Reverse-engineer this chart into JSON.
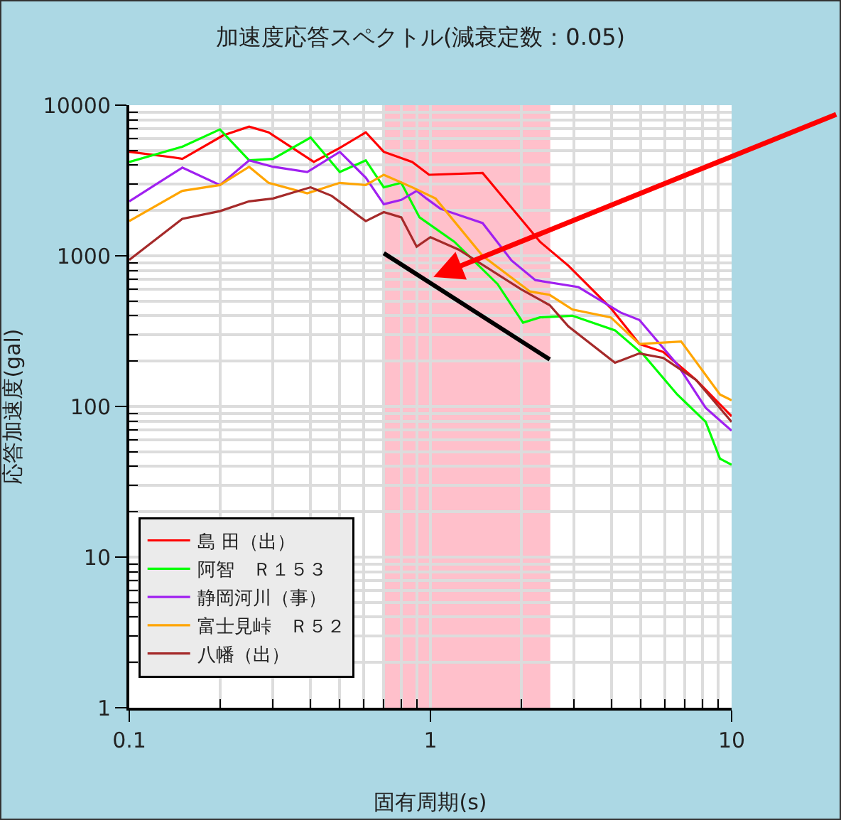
{
  "chart_data": {
    "type": "line",
    "title": "加速度応答スペクトル(減衰定数：0.05)",
    "xlabel": "固有周期(s)",
    "ylabel": "応答加速度(gal)",
    "log": "xy",
    "xlim": [
      0.1,
      10
    ],
    "ylim": [
      1,
      10000
    ],
    "xticks": [
      0.1,
      1,
      10
    ],
    "yticks": [
      1,
      10,
      100,
      1000,
      10000
    ],
    "grid": true,
    "legend": "bottom left",
    "marker": "none",
    "line_style": "solid",
    "bands": [
      {
        "axis": "x",
        "from": 0.7,
        "to": 2.5,
        "color": "#ffc0cb"
      }
    ],
    "series": [
      {
        "name": "島 田（出）",
        "color": "#ff0000",
        "x": [
          0.1,
          0.14,
          0.15,
          0.205,
          0.25,
          0.29,
          0.41,
          0.5,
          0.61,
          0.7,
          0.87,
          0.99,
          1.49,
          2.31,
          2.87,
          3.97,
          4.94,
          5.93,
          7.62,
          10
        ],
        "values": [
          4900,
          4500,
          4400,
          6300,
          7200,
          6600,
          4200,
          5200,
          6600,
          4900,
          4200,
          3450,
          3550,
          1240,
          860,
          450,
          260,
          230,
          150,
          86
        ]
      },
      {
        "name": "阿智　Ｒ１５３",
        "color": "#00ff00",
        "x": [
          0.1,
          0.15,
          0.2,
          0.25,
          0.3,
          0.4,
          0.5,
          0.61,
          0.7,
          0.8,
          0.92,
          1.2,
          1.67,
          2.03,
          2.31,
          2.96,
          4.1,
          5.1,
          6.6,
          8.2,
          9.15,
          10
        ],
        "values": [
          4200,
          5300,
          6900,
          4300,
          4400,
          6100,
          3600,
          4300,
          2850,
          3050,
          1800,
          1240,
          650,
          360,
          390,
          400,
          320,
          220,
          120,
          79,
          45,
          41
        ]
      },
      {
        "name": "静岡河川（事）",
        "color": "#a020f0",
        "x": [
          0.1,
          0.15,
          0.2,
          0.25,
          0.3,
          0.39,
          0.5,
          0.61,
          0.7,
          0.8,
          0.9,
          0.97,
          1.08,
          1.49,
          1.86,
          2.23,
          3.1,
          4.28,
          4.94,
          6.6,
          8.2,
          10
        ],
        "values": [
          2300,
          3850,
          2950,
          4300,
          3900,
          3600,
          4900,
          3300,
          2200,
          2350,
          2700,
          2400,
          2050,
          1650,
          930,
          690,
          620,
          420,
          375,
          190,
          98,
          69
        ]
      },
      {
        "name": "富士見峠　Ｒ５２",
        "color": "#ffa500",
        "x": [
          0.1,
          0.15,
          0.2,
          0.25,
          0.29,
          0.39,
          0.5,
          0.61,
          0.7,
          0.87,
          1.04,
          1.49,
          2.14,
          2.49,
          2.96,
          3.97,
          4.94,
          6.8,
          9.15,
          10
        ],
        "values": [
          1700,
          2700,
          2950,
          3900,
          3050,
          2600,
          3050,
          2950,
          3450,
          2850,
          2400,
          1000,
          580,
          550,
          440,
          390,
          260,
          270,
          120,
          110
        ]
      },
      {
        "name": "八幡（出）",
        "color": "#a52a2a",
        "x": [
          0.1,
          0.15,
          0.2,
          0.25,
          0.3,
          0.4,
          0.47,
          0.61,
          0.7,
          0.8,
          0.9,
          1.0,
          1.24,
          2.0,
          2.49,
          2.87,
          4.1,
          4.94,
          5.93,
          7.62,
          10
        ],
        "values": [
          940,
          1760,
          1980,
          2300,
          2400,
          2850,
          2500,
          1700,
          1950,
          1800,
          1150,
          1330,
          1100,
          600,
          470,
          340,
          195,
          225,
          210,
          150,
          79
        ]
      },
      {
        "type": "line",
        "color": "#000000",
        "x": [
          0.7,
          2.49
        ],
        "values": [
          1040,
          205
        ]
      }
    ]
  }
}
